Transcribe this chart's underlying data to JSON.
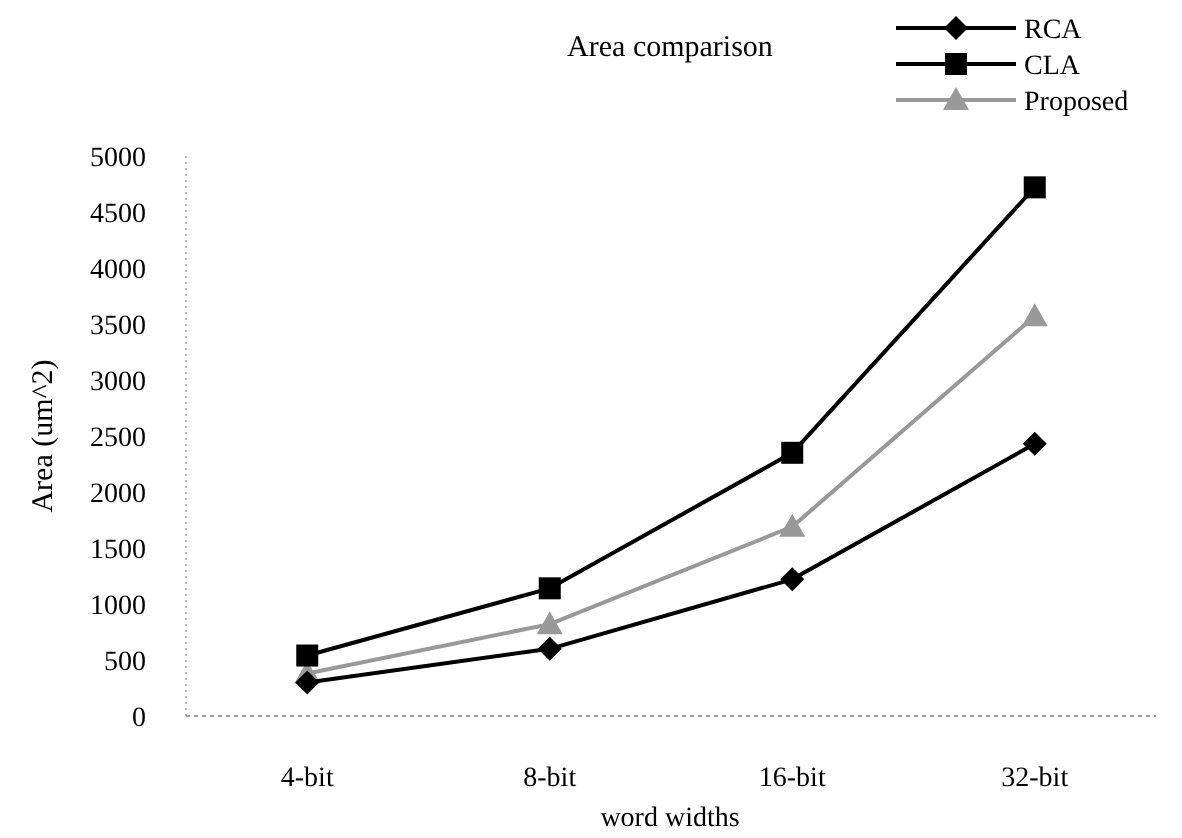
{
  "chart_data": {
    "type": "line",
    "title": "Area comparison",
    "xlabel": "word widths",
    "ylabel": "Area (um^2)",
    "categories": [
      "4-bit",
      "8-bit",
      "16-bit",
      "32-bit"
    ],
    "series": [
      {
        "name": "RCA",
        "color": "#000000",
        "marker": "diamond",
        "values": [
          300,
          600,
          1220,
          2430
        ]
      },
      {
        "name": "CLA",
        "color": "#000000",
        "marker": "square",
        "values": [
          540,
          1140,
          2350,
          4720
        ]
      },
      {
        "name": "Proposed",
        "color": "#999999",
        "marker": "triangle",
        "values": [
          380,
          820,
          1690,
          3570
        ]
      }
    ],
    "ylim": [
      0,
      5000
    ],
    "yticks": [
      0,
      500,
      1000,
      1500,
      2000,
      2500,
      3000,
      3500,
      4000,
      4500,
      5000
    ],
    "grid": false,
    "legend": "top right"
  }
}
